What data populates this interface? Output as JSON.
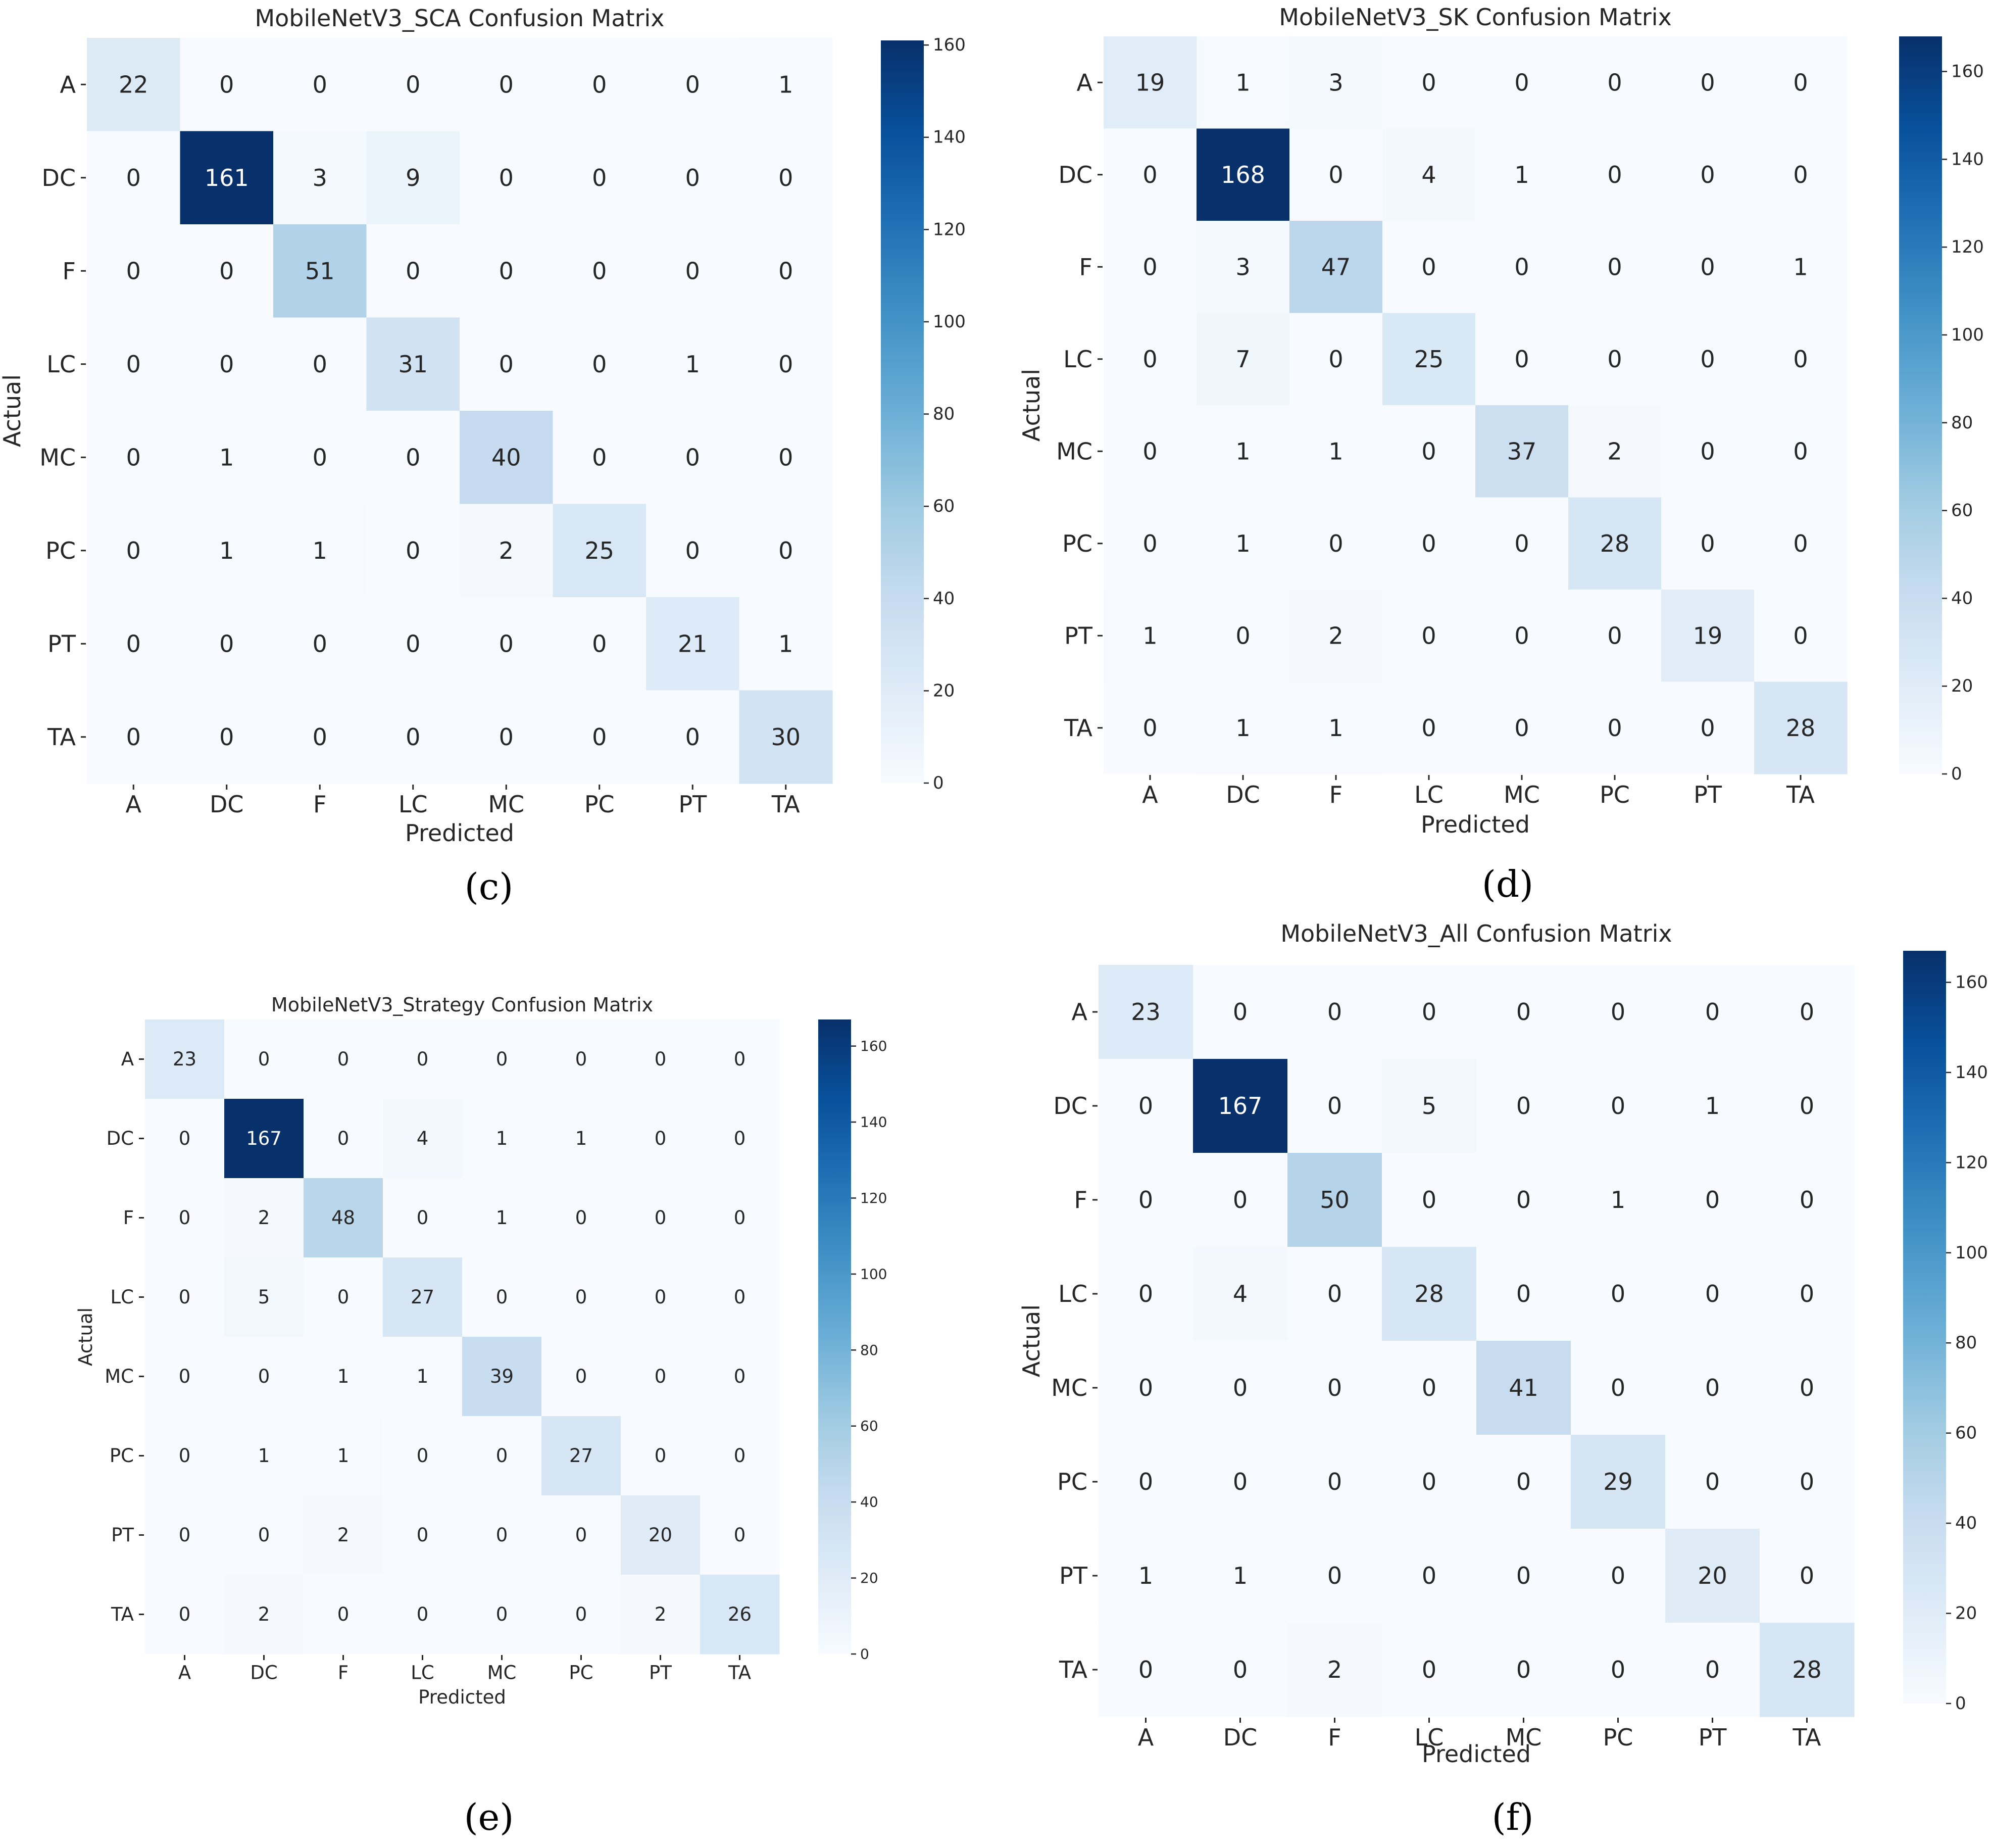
{
  "colormap": [
    "#f7fbff",
    "#deebf7",
    "#c6dbef",
    "#9ecae1",
    "#6baed6",
    "#4292c6",
    "#2171b5",
    "#08519c",
    "#08306b"
  ],
  "chart_data": [
    {
      "type": "heatmap",
      "title": "MobileNetV3_SCA Confusion Matrix",
      "xlabel": "Predicted",
      "ylabel": "Actual",
      "caption": "(c)",
      "categories": [
        "A",
        "DC",
        "F",
        "LC",
        "MC",
        "PC",
        "PT",
        "TA"
      ],
      "matrix": [
        [
          22,
          0,
          0,
          0,
          0,
          0,
          0,
          1
        ],
        [
          0,
          161,
          3,
          9,
          0,
          0,
          0,
          0
        ],
        [
          0,
          0,
          51,
          0,
          0,
          0,
          0,
          0
        ],
        [
          0,
          0,
          0,
          31,
          0,
          0,
          1,
          0
        ],
        [
          0,
          1,
          0,
          0,
          40,
          0,
          0,
          0
        ],
        [
          0,
          1,
          1,
          0,
          2,
          25,
          0,
          0
        ],
        [
          0,
          0,
          0,
          0,
          0,
          0,
          21,
          1
        ],
        [
          0,
          0,
          0,
          0,
          0,
          0,
          0,
          30
        ]
      ],
      "vmin": 0,
      "vmax": 161,
      "colorbar_ticks": [
        0,
        20,
        40,
        60,
        80,
        100,
        120,
        140,
        160
      ]
    },
    {
      "type": "heatmap",
      "title": "MobileNetV3_SK Confusion Matrix",
      "xlabel": "Predicted",
      "ylabel": "Actual",
      "caption": "(d)",
      "categories": [
        "A",
        "DC",
        "F",
        "LC",
        "MC",
        "PC",
        "PT",
        "TA"
      ],
      "matrix": [
        [
          19,
          1,
          3,
          0,
          0,
          0,
          0,
          0
        ],
        [
          0,
          168,
          0,
          4,
          1,
          0,
          0,
          0
        ],
        [
          0,
          3,
          47,
          0,
          0,
          0,
          0,
          1
        ],
        [
          0,
          7,
          0,
          25,
          0,
          0,
          0,
          0
        ],
        [
          0,
          1,
          1,
          0,
          37,
          2,
          0,
          0
        ],
        [
          0,
          1,
          0,
          0,
          0,
          28,
          0,
          0
        ],
        [
          1,
          0,
          2,
          0,
          0,
          0,
          19,
          0
        ],
        [
          0,
          1,
          1,
          0,
          0,
          0,
          0,
          28
        ]
      ],
      "vmin": 0,
      "vmax": 168,
      "colorbar_ticks": [
        0,
        20,
        40,
        60,
        80,
        100,
        120,
        140,
        160
      ]
    },
    {
      "type": "heatmap",
      "title": "MobileNetV3_Strategy Confusion Matrix",
      "xlabel": "Predicted",
      "ylabel": "Actual",
      "caption": "(e)",
      "categories": [
        "A",
        "DC",
        "F",
        "LC",
        "MC",
        "PC",
        "PT",
        "TA"
      ],
      "matrix": [
        [
          23,
          0,
          0,
          0,
          0,
          0,
          0,
          0
        ],
        [
          0,
          167,
          0,
          4,
          1,
          1,
          0,
          0
        ],
        [
          0,
          2,
          48,
          0,
          1,
          0,
          0,
          0
        ],
        [
          0,
          5,
          0,
          27,
          0,
          0,
          0,
          0
        ],
        [
          0,
          0,
          1,
          1,
          39,
          0,
          0,
          0
        ],
        [
          0,
          1,
          1,
          0,
          0,
          27,
          0,
          0
        ],
        [
          0,
          0,
          2,
          0,
          0,
          0,
          20,
          0
        ],
        [
          0,
          2,
          0,
          0,
          0,
          0,
          2,
          26
        ]
      ],
      "vmin": 0,
      "vmax": 167,
      "colorbar_ticks": [
        0,
        20,
        40,
        60,
        80,
        100,
        120,
        140,
        160
      ]
    },
    {
      "type": "heatmap",
      "title": "MobileNetV3_All Confusion Matrix",
      "xlabel": "Predicted",
      "ylabel": "Actual",
      "caption": "(f)",
      "categories": [
        "A",
        "DC",
        "F",
        "LC",
        "MC",
        "PC",
        "PT",
        "TA"
      ],
      "matrix": [
        [
          23,
          0,
          0,
          0,
          0,
          0,
          0,
          0
        ],
        [
          0,
          167,
          0,
          5,
          0,
          0,
          1,
          0
        ],
        [
          0,
          0,
          50,
          0,
          0,
          1,
          0,
          0
        ],
        [
          0,
          4,
          0,
          28,
          0,
          0,
          0,
          0
        ],
        [
          0,
          0,
          0,
          0,
          41,
          0,
          0,
          0
        ],
        [
          0,
          0,
          0,
          0,
          0,
          29,
          0,
          0
        ],
        [
          1,
          1,
          0,
          0,
          0,
          0,
          20,
          0
        ],
        [
          0,
          0,
          2,
          0,
          0,
          0,
          0,
          28
        ]
      ],
      "vmin": 0,
      "vmax": 167,
      "colorbar_ticks": [
        0,
        20,
        40,
        60,
        80,
        100,
        120,
        140,
        160
      ]
    }
  ]
}
